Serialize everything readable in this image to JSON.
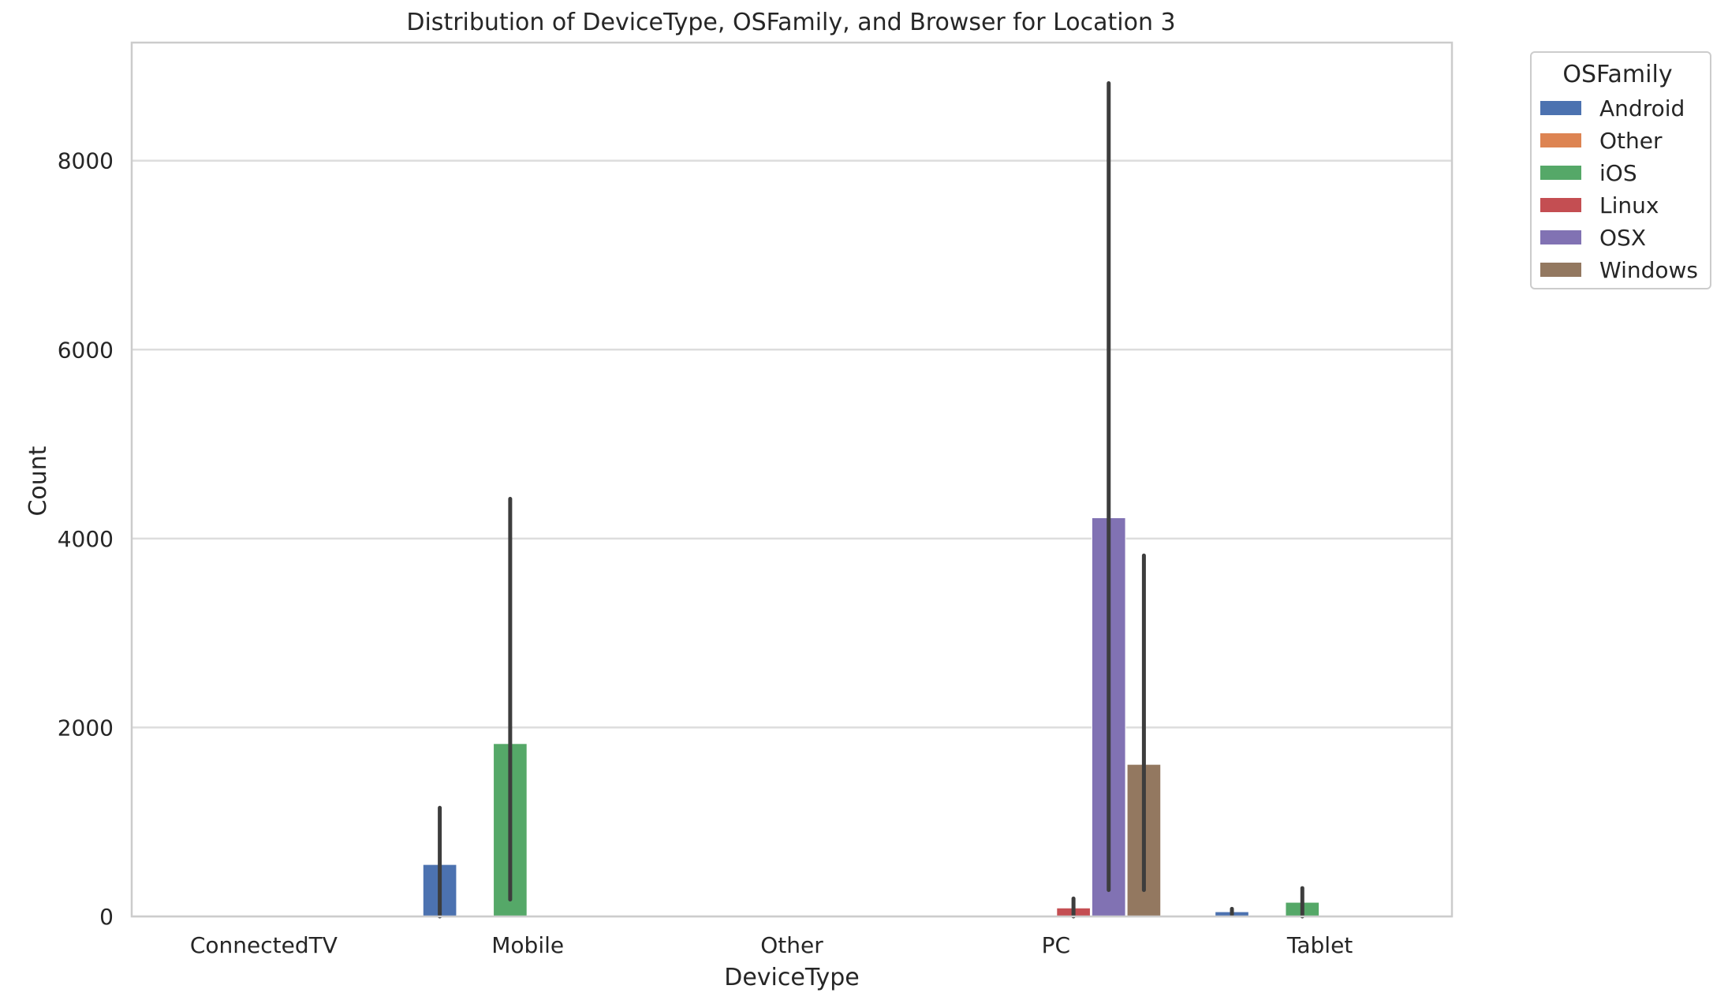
{
  "chart_data": {
    "type": "bar",
    "title": "Distribution of DeviceType, OSFamily, and Browser for Location 3",
    "xlabel": "DeviceType",
    "ylabel": "Count",
    "ylim": [
      0,
      9250
    ],
    "yticks": [
      0,
      2000,
      4000,
      6000,
      8000
    ],
    "grid": true,
    "legend_position": "outside top-right",
    "legend_title": "OSFamily",
    "categories": [
      "ConnectedTV",
      "Mobile",
      "Other",
      "PC",
      "Tablet"
    ],
    "series": [
      {
        "name": "Android",
        "color": "#4c72b0",
        "values": [
          null,
          550,
          null,
          null,
          50
        ],
        "err_low": [
          null,
          0,
          null,
          null,
          20
        ],
        "err_high": [
          null,
          1150,
          null,
          null,
          80
        ]
      },
      {
        "name": "Other",
        "color": "#dd8452",
        "values": [
          null,
          null,
          null,
          null,
          null
        ],
        "err_low": [
          null,
          null,
          null,
          null,
          null
        ],
        "err_high": [
          null,
          null,
          null,
          null,
          null
        ]
      },
      {
        "name": "iOS",
        "color": "#55a868",
        "values": [
          null,
          1830,
          null,
          null,
          150
        ],
        "err_low": [
          null,
          180,
          null,
          null,
          0
        ],
        "err_high": [
          null,
          4420,
          null,
          null,
          300
        ]
      },
      {
        "name": "Linux",
        "color": "#c44e52",
        "values": [
          null,
          null,
          null,
          90,
          null
        ],
        "err_low": [
          null,
          null,
          null,
          0,
          null
        ],
        "err_high": [
          null,
          null,
          null,
          190,
          null
        ]
      },
      {
        "name": "OSX",
        "color": "#8172b3",
        "values": [
          null,
          null,
          null,
          4220,
          null
        ],
        "err_low": [
          null,
          null,
          null,
          280,
          null
        ],
        "err_high": [
          null,
          null,
          null,
          8820,
          null
        ]
      },
      {
        "name": "Windows",
        "color": "#937860",
        "values": [
          null,
          null,
          null,
          1610,
          null
        ],
        "err_low": [
          null,
          null,
          null,
          280,
          null
        ],
        "err_high": [
          null,
          null,
          null,
          3820,
          null
        ]
      }
    ]
  }
}
